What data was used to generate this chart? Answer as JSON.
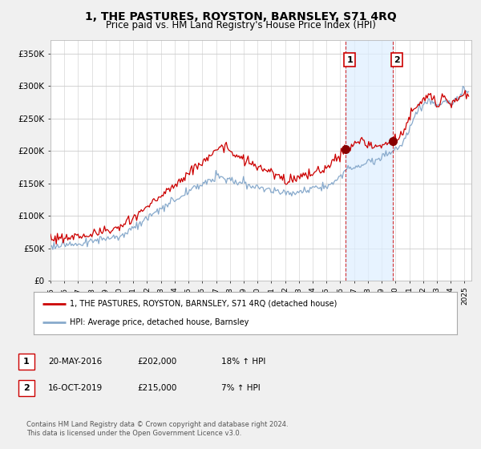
{
  "title": "1, THE PASTURES, ROYSTON, BARNSLEY, S71 4RQ",
  "subtitle": "Price paid vs. HM Land Registry's House Price Index (HPI)",
  "title_fontsize": 10,
  "subtitle_fontsize": 8.5,
  "ylabel_ticks": [
    "£0",
    "£50K",
    "£100K",
    "£150K",
    "£200K",
    "£250K",
    "£300K",
    "£350K"
  ],
  "ytick_values": [
    0,
    50000,
    100000,
    150000,
    200000,
    250000,
    300000,
    350000
  ],
  "ylim": [
    0,
    370000
  ],
  "xlim_start": 1995.0,
  "xlim_end": 2025.5,
  "red_line_color": "#cc0000",
  "blue_line_color": "#88aacc",
  "vline_color": "#cc0000",
  "shade_color": "#ddeeff",
  "marker1_year": 2016.38,
  "marker1_value": 202000,
  "marker2_year": 2019.79,
  "marker2_value": 215000,
  "legend_label_red": "1, THE PASTURES, ROYSTON, BARNSLEY, S71 4RQ (detached house)",
  "legend_label_blue": "HPI: Average price, detached house, Barnsley",
  "table_row1": [
    "1",
    "20-MAY-2016",
    "£202,000",
    "18% ↑ HPI"
  ],
  "table_row2": [
    "2",
    "16-OCT-2019",
    "£215,000",
    "7% ↑ HPI"
  ],
  "footer": "Contains HM Land Registry data © Crown copyright and database right 2024.\nThis data is licensed under the Open Government Licence v3.0.",
  "background_color": "#f0f0f0",
  "plot_bg_color": "#ffffff",
  "grid_color": "#cccccc"
}
